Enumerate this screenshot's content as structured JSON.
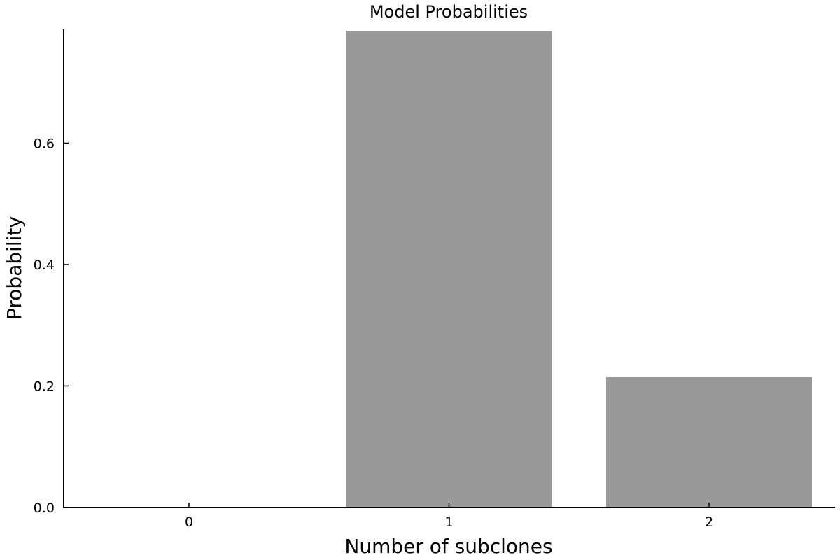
{
  "chart_data": {
    "type": "bar",
    "title": "Model Probabilities",
    "xlabel": "Number of subclones",
    "ylabel": "Probability",
    "categories": [
      "0",
      "1",
      "2"
    ],
    "values": [
      0.0,
      0.785,
      0.215
    ],
    "ylim": [
      0,
      0.785
    ],
    "yticks": [
      0.0,
      0.2,
      0.4,
      0.6
    ],
    "ytick_labels": [
      "0.0",
      "0.2",
      "0.4",
      "0.6"
    ],
    "grid": false,
    "legend": "none",
    "bar_color": "#999999"
  }
}
